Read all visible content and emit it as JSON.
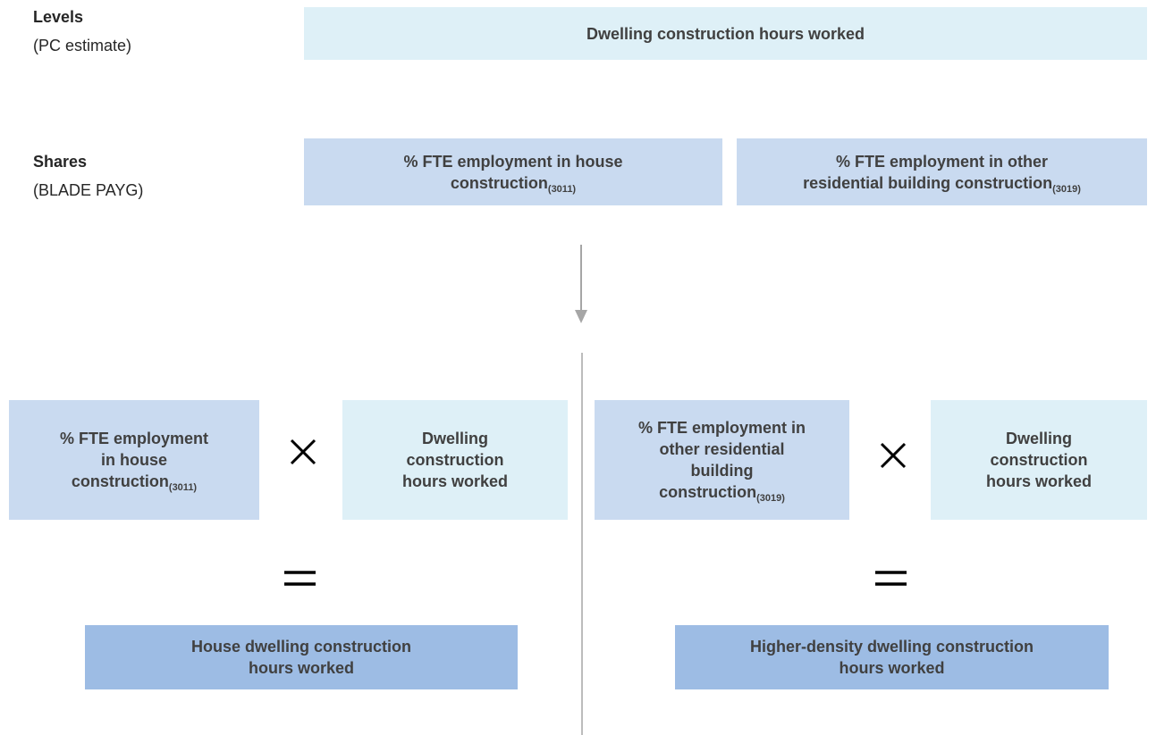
{
  "labels": [
    {
      "title": "Levels",
      "note": "(PC estimate)"
    },
    {
      "title": "Shares",
      "note": "(BLADE PAYG)"
    }
  ],
  "boxes": {
    "total": {
      "lines": [
        "Dwelling construction hours worked"
      ]
    },
    "share_house": {
      "lines": [
        "% FTE employment in house",
        "construction"
      ],
      "sub": "(3011)"
    },
    "share_other": {
      "lines": [
        "% FTE employment in other",
        "residential building construction"
      ],
      "sub": "(3019)"
    },
    "house_share": {
      "lines": [
        "% FTE employment",
        "in house",
        "construction"
      ],
      "sub": "(3011)"
    },
    "house_hours": {
      "lines": [
        "Dwelling",
        "construction",
        "hours worked"
      ]
    },
    "house_result": {
      "lines": [
        "House dwelling construction",
        "hours worked"
      ]
    },
    "other_share": {
      "lines": [
        "% FTE employment in",
        "other residential",
        "building",
        "construction"
      ],
      "sub": "(3019)"
    },
    "other_hours": {
      "lines": [
        "Dwelling",
        "construction",
        "hours worked"
      ]
    },
    "other_result": {
      "lines": [
        "Higher-density dwelling construction",
        "hours worked"
      ]
    }
  }
}
